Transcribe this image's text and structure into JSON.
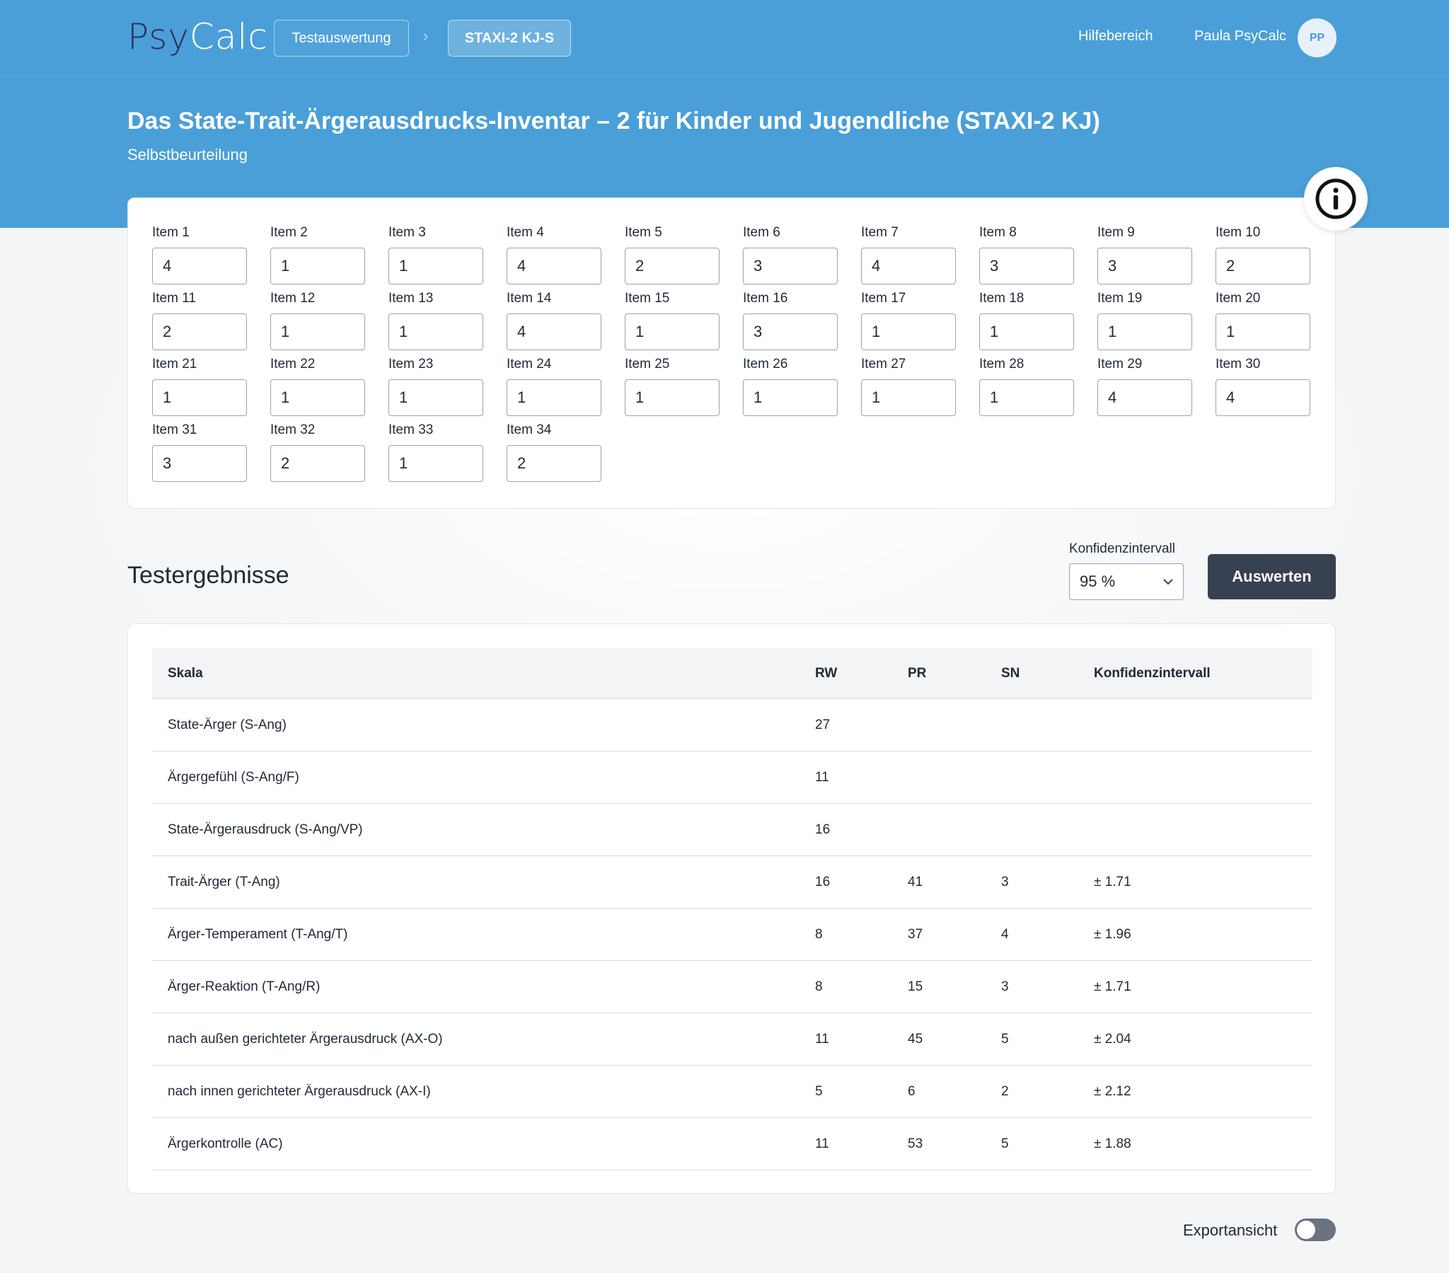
{
  "colors": {
    "brand": "#4a9fd8",
    "dark_button": "#374151",
    "logo_dark": "#2b2f5a"
  },
  "nav": {
    "logo_part1": "Psy",
    "logo_part2": "Calc",
    "breadcrumb": [
      "Testauswertung",
      "STAXI-2 KJ-S"
    ],
    "breadcrumb_separator": "›",
    "help": "Hilfebereich",
    "user": "Paula PsyCalc",
    "avatar_initials": "PP"
  },
  "header": {
    "title": "Das State-Trait-Ärgerausdrucks-Inventar – 2 für Kinder und Jugendliche (STAXI-2 KJ)",
    "subtitle": "Selbstbeurteilung"
  },
  "info_icon": "info-circle-icon",
  "items": [
    {
      "label": "Item 1",
      "value": "4"
    },
    {
      "label": "Item 2",
      "value": "1"
    },
    {
      "label": "Item 3",
      "value": "1"
    },
    {
      "label": "Item 4",
      "value": "4"
    },
    {
      "label": "Item 5",
      "value": "2"
    },
    {
      "label": "Item 6",
      "value": "3"
    },
    {
      "label": "Item 7",
      "value": "4"
    },
    {
      "label": "Item 8",
      "value": "3"
    },
    {
      "label": "Item 9",
      "value": "3"
    },
    {
      "label": "Item 10",
      "value": "2"
    },
    {
      "label": "Item 11",
      "value": "2"
    },
    {
      "label": "Item 12",
      "value": "1"
    },
    {
      "label": "Item 13",
      "value": "1"
    },
    {
      "label": "Item 14",
      "value": "4"
    },
    {
      "label": "Item 15",
      "value": "1"
    },
    {
      "label": "Item 16",
      "value": "3"
    },
    {
      "label": "Item 17",
      "value": "1"
    },
    {
      "label": "Item 18",
      "value": "1"
    },
    {
      "label": "Item 19",
      "value": "1"
    },
    {
      "label": "Item 20",
      "value": "1"
    },
    {
      "label": "Item 21",
      "value": "1"
    },
    {
      "label": "Item 22",
      "value": "1"
    },
    {
      "label": "Item 23",
      "value": "1"
    },
    {
      "label": "Item 24",
      "value": "1"
    },
    {
      "label": "Item 25",
      "value": "1"
    },
    {
      "label": "Item 26",
      "value": "1"
    },
    {
      "label": "Item 27",
      "value": "1"
    },
    {
      "label": "Item 28",
      "value": "1"
    },
    {
      "label": "Item 29",
      "value": "4"
    },
    {
      "label": "Item 30",
      "value": "4"
    },
    {
      "label": "Item 31",
      "value": "3"
    },
    {
      "label": "Item 32",
      "value": "2"
    },
    {
      "label": "Item 33",
      "value": "1"
    },
    {
      "label": "Item 34",
      "value": "2"
    }
  ],
  "results": {
    "heading": "Testergebnisse",
    "ci_label": "Konfidenzintervall",
    "ci_value": "95 %",
    "evaluate_button": "Auswerten",
    "columns": [
      "Skala",
      "RW",
      "PR",
      "SN",
      "Konfidenzintervall"
    ],
    "rows": [
      {
        "skala": "State-Ärger (S-Ang)",
        "rw": "27",
        "pr": "",
        "sn": "",
        "ki": ""
      },
      {
        "skala": "Ärgergefühl (S-Ang/F)",
        "rw": "11",
        "pr": "",
        "sn": "",
        "ki": ""
      },
      {
        "skala": "State-Ärgerausdruck (S-Ang/VP)",
        "rw": "16",
        "pr": "",
        "sn": "",
        "ki": ""
      },
      {
        "skala": "Trait-Ärger (T-Ang)",
        "rw": "16",
        "pr": "41",
        "sn": "3",
        "ki": "± 1.71"
      },
      {
        "skala": "Ärger-Temperament (T-Ang/T)",
        "rw": "8",
        "pr": "37",
        "sn": "4",
        "ki": "± 1.96"
      },
      {
        "skala": "Ärger-Reaktion (T-Ang/R)",
        "rw": "8",
        "pr": "15",
        "sn": "3",
        "ki": "± 1.71"
      },
      {
        "skala": "nach außen gerichteter Ärgerausdruck (AX-O)",
        "rw": "11",
        "pr": "45",
        "sn": "5",
        "ki": "± 2.04"
      },
      {
        "skala": "nach innen gerichteter Ärgerausdruck (AX-I)",
        "rw": "5",
        "pr": "6",
        "sn": "2",
        "ki": "± 2.12"
      },
      {
        "skala": "Ärgerkontrolle (AC)",
        "rw": "11",
        "pr": "53",
        "sn": "5",
        "ki": "± 1.88"
      }
    ]
  },
  "export": {
    "label": "Exportansicht",
    "enabled": false
  }
}
